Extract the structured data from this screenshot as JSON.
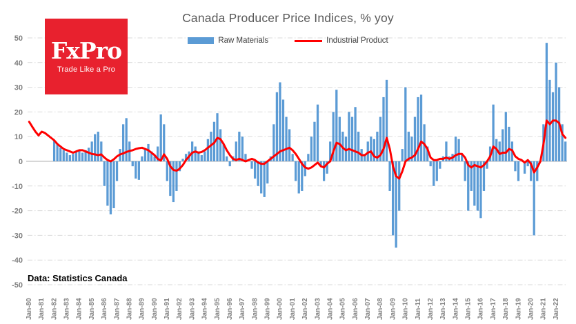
{
  "title": "Canada Producer Price Indices, % yoy",
  "logo": {
    "brand": "FxPro",
    "tagline": "Trade Like a Pro",
    "bg_color": "#E8212E"
  },
  "legend": {
    "raw_materials_label": "Raw Materials",
    "industrial_product_label": "Industrial Product"
  },
  "footer": {
    "source_note": "Data: Statistics Canada"
  },
  "colors": {
    "bar": "#5B9BD5",
    "line": "#FF0000",
    "grid": "#D9D9D9",
    "zero_axis": "#BFBFBF",
    "title_text": "#595959",
    "tick_text": "#7f7f7f"
  },
  "chart_data": {
    "type": "bar+line",
    "title": "Canada Producer Price Indices, % yoy",
    "xlabel": "",
    "ylabel": "",
    "ylim": [
      -50,
      50
    ],
    "y_ticks": [
      50,
      40,
      30,
      20,
      10,
      0,
      -10,
      -20,
      -30,
      -40,
      -50
    ],
    "grid": "dash-dot horizontal",
    "legend_position": "top",
    "frequency": "quarterly",
    "x_start": "1980-Q1",
    "x_end": "2022-Q4",
    "x_tick_labels": [
      "Jan-80",
      "Jan-81",
      "Jan-82",
      "Jan-83",
      "Jan-84",
      "Jan-85",
      "Jan-86",
      "Jan-87",
      "Jan-88",
      "Jan-89",
      "Jan-90",
      "Jan-91",
      "Jan-92",
      "Jan-93",
      "Jan-94",
      "Jan-95",
      "Jan-96",
      "Jan-97",
      "Jan-98",
      "Jan-99",
      "Jan-00",
      "Jan-01",
      "Jan-02",
      "Jan-03",
      "Jan-04",
      "Jan-05",
      "Jan-06",
      "Jan-07",
      "Jan-08",
      "Jan-09",
      "Jan-10",
      "Jan-11",
      "Jan-12",
      "Jan-13",
      "Jan-14",
      "Jan-15",
      "Jan-16",
      "Jan-17",
      "Jan-18",
      "Jan-19",
      "Jan-20",
      "Jan-21",
      "Jan-22"
    ],
    "series": [
      {
        "name": "Raw Materials",
        "type": "bar",
        "color": "#5B9BD5",
        "values": [
          null,
          null,
          null,
          null,
          null,
          null,
          null,
          null,
          8.5,
          7,
          5.5,
          4.5,
          3.5,
          2.5,
          3,
          4,
          4.5,
          3.5,
          4.5,
          5.5,
          8,
          11,
          12,
          8,
          -10,
          -18,
          -21.5,
          -19,
          -8,
          5,
          15,
          17.5,
          8,
          -2,
          -7,
          -7.5,
          2,
          5,
          7,
          4,
          2,
          6,
          19,
          15,
          -8,
          -14,
          -16.5,
          -12,
          -4,
          1,
          3,
          4,
          8,
          6,
          4,
          2.5,
          4,
          9,
          12,
          16,
          19.5,
          13,
          7,
          2,
          -2,
          2,
          8,
          12,
          10,
          3,
          0,
          -3,
          -7,
          -10,
          -13,
          -14.5,
          -9,
          2,
          15,
          28,
          32,
          25,
          18,
          13,
          3,
          -8,
          -13,
          -12,
          -6,
          3,
          10,
          16,
          23,
          -2,
          -8,
          -5,
          8,
          20,
          29,
          18,
          12,
          10,
          20,
          18,
          22,
          12,
          5,
          3,
          8,
          10,
          9,
          12,
          18,
          26,
          33,
          -12,
          -30,
          -35,
          -20,
          5,
          30,
          12,
          10,
          18,
          26,
          27,
          15,
          6,
          -2,
          -10,
          -8,
          -3,
          2,
          8,
          2,
          3,
          10,
          9,
          3,
          -8,
          -20,
          -12,
          -18,
          -20,
          -23,
          -12,
          -3,
          6,
          23,
          9,
          8,
          13,
          20,
          14,
          8,
          -4,
          -8,
          0,
          -5,
          -2,
          -8,
          -30,
          -8,
          0,
          15,
          48,
          33,
          28,
          40,
          30,
          15,
          8
        ]
      },
      {
        "name": "Industrial Product",
        "type": "line",
        "color": "#FF0000",
        "values": [
          16,
          14,
          12,
          10.5,
          12,
          11.5,
          10.5,
          9.5,
          8.5,
          7,
          6,
          5,
          4.5,
          4,
          3.5,
          4,
          4.5,
          4.5,
          4,
          3.5,
          3,
          2.8,
          2.5,
          2.8,
          1.5,
          0.5,
          0,
          0.8,
          2,
          2.8,
          3.2,
          3.8,
          4.2,
          4.5,
          5,
          5.3,
          5.5,
          5,
          4.5,
          3.5,
          2.5,
          1,
          0.3,
          2.8,
          1,
          -2,
          -3.5,
          -3.8,
          -3,
          -1.5,
          0.5,
          2,
          3.5,
          4,
          3.5,
          3.8,
          4.5,
          5.5,
          6.5,
          7.5,
          9.5,
          9,
          7,
          4.5,
          2.5,
          1,
          0.5,
          1,
          0.5,
          0,
          0.5,
          1,
          0.5,
          -0.5,
          -1,
          -1,
          0,
          1,
          2,
          3,
          4,
          4.5,
          5,
          5.5,
          4.5,
          3,
          1,
          -1,
          -2.5,
          -3,
          -2.5,
          -1.5,
          -0.5,
          -2,
          -2.5,
          -1,
          0,
          4,
          7.5,
          7,
          5.5,
          4.5,
          5,
          4.5,
          4,
          3.5,
          2.5,
          2.5,
          3.5,
          4,
          2,
          1.5,
          2.5,
          5,
          9.5,
          5,
          -2,
          -6,
          -7,
          -4,
          0,
          1,
          1.5,
          2.5,
          5,
          8,
          7,
          5,
          1.5,
          0.5,
          0.5,
          1,
          1,
          1.5,
          1,
          1.5,
          2.5,
          3,
          3,
          1.5,
          -1.5,
          -2.5,
          -1.5,
          -2,
          -2.5,
          -1.5,
          0,
          2,
          6,
          5,
          3,
          3.5,
          3.5,
          5,
          4.5,
          2,
          1,
          0.5,
          -0.5,
          0.5,
          -1,
          -4.5,
          -2.5,
          0,
          7,
          16.5,
          15,
          16.5,
          16.5,
          15.5,
          11,
          9.5
        ]
      }
    ]
  }
}
